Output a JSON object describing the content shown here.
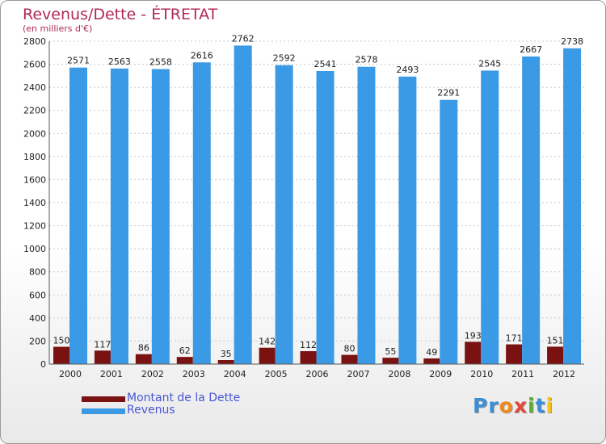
{
  "header": {
    "title": "Revenus/Dette - ÉTRETAT",
    "unit": "(en milliers d'€)"
  },
  "chart_data": {
    "type": "bar",
    "categories": [
      "2000",
      "2001",
      "2002",
      "2003",
      "2004",
      "2005",
      "2006",
      "2007",
      "2008",
      "2009",
      "2010",
      "2011",
      "2012"
    ],
    "series": [
      {
        "name": "Montant de la Dette",
        "color": "#7a1212",
        "values": [
          150,
          117,
          86,
          62,
          35,
          142,
          112,
          80,
          55,
          49,
          193,
          171,
          151
        ]
      },
      {
        "name": "Revenus",
        "color": "#3a9ae6",
        "values": [
          2571,
          2563,
          2558,
          2616,
          2762,
          2592,
          2541,
          2578,
          2493,
          2291,
          2545,
          2667,
          2738
        ]
      }
    ],
    "ylim": [
      0,
      2800
    ],
    "yticks": [
      0,
      200,
      400,
      600,
      800,
      1000,
      1200,
      1400,
      1600,
      1800,
      2000,
      2200,
      2400,
      2600,
      2800
    ],
    "grid": true,
    "legend_position": "bottom-left"
  },
  "logo": {
    "letters": [
      {
        "ch": "P",
        "color": "#3a8fd8"
      },
      {
        "ch": "r",
        "color": "#3a8fd8"
      },
      {
        "ch": "o",
        "color": "#f08a1c"
      },
      {
        "ch": "x",
        "color": "#e04a3a"
      },
      {
        "ch": "i",
        "color": "#58b030"
      },
      {
        "ch": "t",
        "color": "#3a8fd8"
      },
      {
        "ch": "i",
        "color": "#f2c21a"
      }
    ]
  }
}
